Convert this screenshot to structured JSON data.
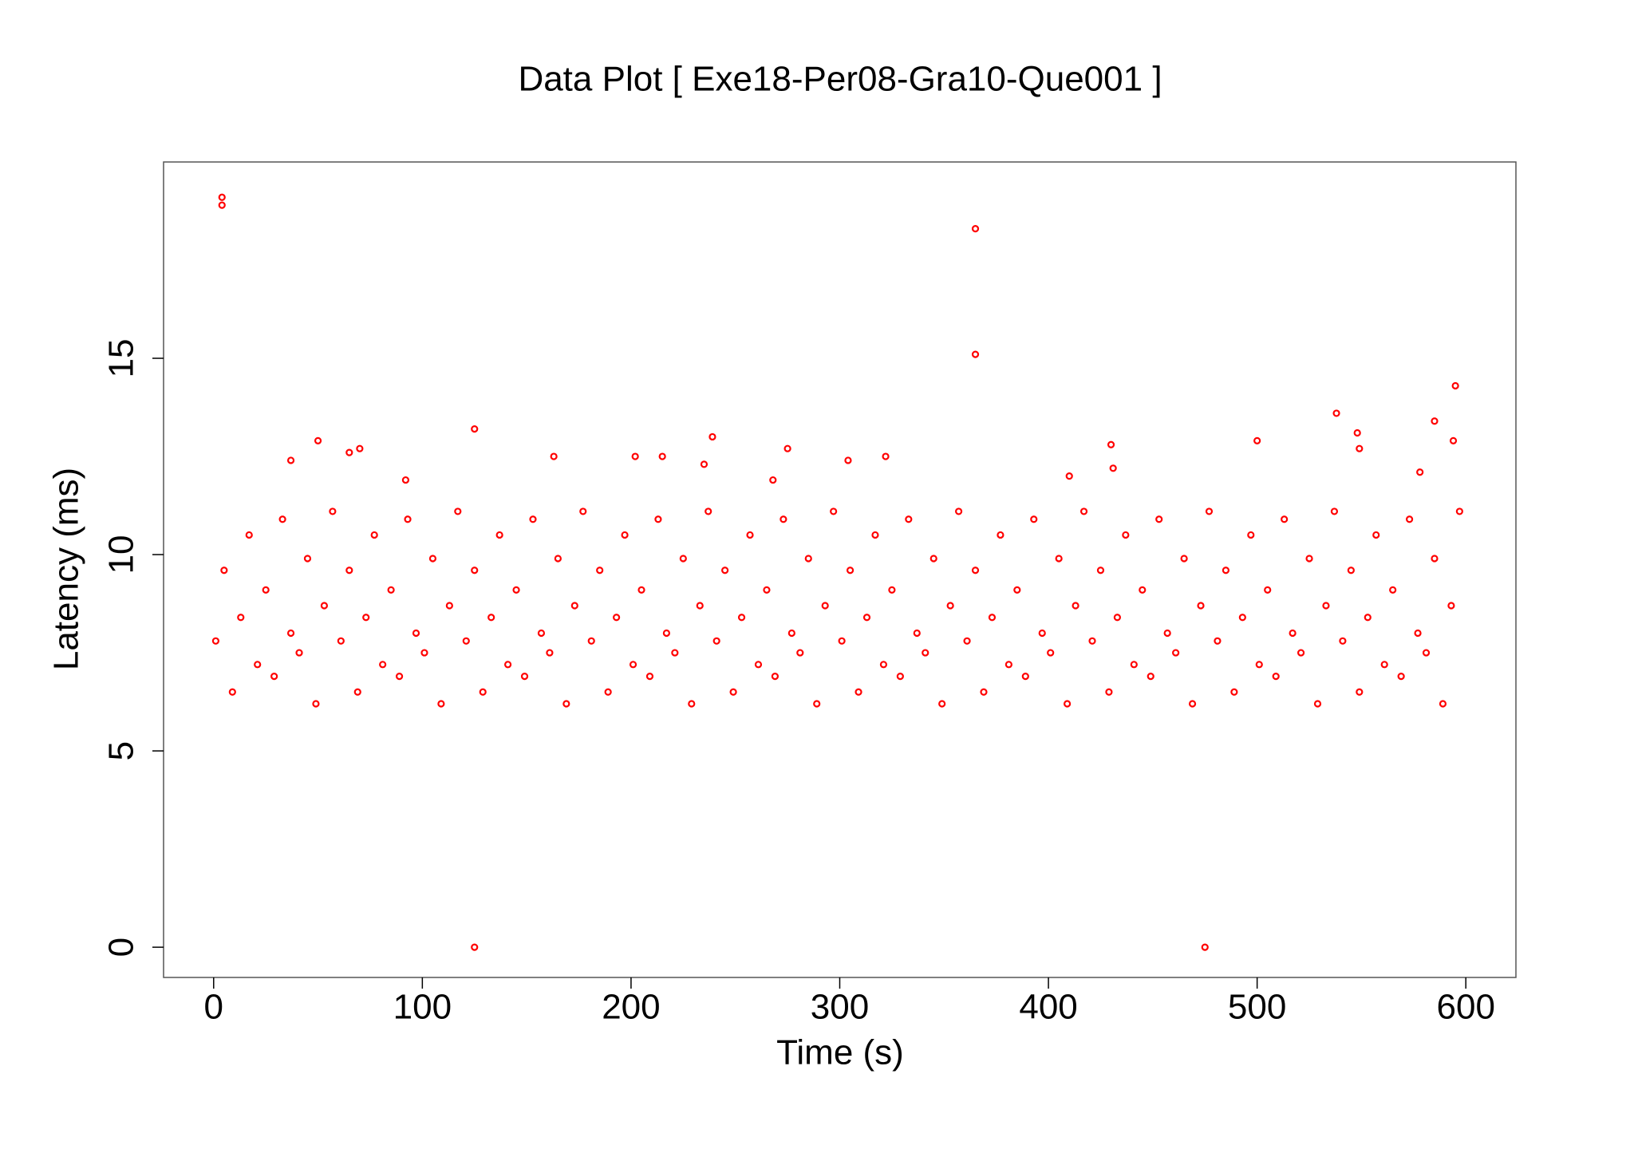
{
  "chart_data": {
    "type": "scatter",
    "title": "Data Plot [ Exe18-Per08-Gra10-Que001 ]",
    "x_label": "Time (s)",
    "y_label": "Latency (ms)",
    "xlim": [
      -24,
      624
    ],
    "ylim": [
      -0.77,
      20
    ],
    "xticks": [
      0,
      100,
      200,
      300,
      400,
      500,
      600
    ],
    "yticks": [
      0,
      5,
      10,
      15
    ],
    "series": [
      {
        "color": "#ff0000",
        "x": [
          1,
          5,
          9,
          13,
          17,
          21,
          25,
          29,
          33,
          37,
          41,
          45,
          49,
          53,
          57,
          61,
          65,
          69,
          73,
          77,
          81,
          85,
          89,
          93,
          97,
          101,
          105,
          109,
          113,
          117,
          121,
          125,
          129,
          133,
          137,
          141,
          145,
          149,
          153,
          157,
          161,
          165,
          169,
          173,
          177,
          181,
          185,
          189,
          193,
          197,
          201,
          205,
          209,
          213,
          217,
          221,
          225,
          229,
          233,
          237,
          241,
          245,
          249,
          253,
          257,
          261,
          265,
          269,
          273,
          277,
          281,
          285,
          289,
          293,
          297,
          301,
          305,
          309,
          313,
          317,
          321,
          325,
          329,
          333,
          337,
          341,
          345,
          349,
          353,
          357,
          361,
          365,
          369,
          373,
          377,
          381,
          385,
          389,
          393,
          397,
          401,
          405,
          409,
          413,
          417,
          421,
          425,
          429,
          433,
          437,
          441,
          445,
          449,
          453,
          457,
          461,
          465,
          469,
          473,
          477,
          481,
          485,
          489,
          493,
          497,
          501,
          505,
          509,
          513,
          517,
          521,
          525,
          529,
          533,
          537,
          541,
          545,
          549,
          553,
          557,
          561,
          565,
          569,
          573,
          577,
          581,
          585,
          589,
          593,
          597,
          4,
          4,
          365,
          365,
          125,
          475,
          595,
          538,
          585,
          125,
          239,
          50,
          500,
          594,
          430,
          70,
          275,
          65,
          215,
          163,
          202,
          322,
          37,
          304,
          235,
          431,
          578,
          92,
          268,
          410,
          548,
          549
        ],
        "values": [
          7.8,
          9.6,
          6.5,
          8.4,
          10.5,
          7.2,
          9.1,
          6.9,
          10.9,
          8.0,
          7.5,
          9.9,
          6.2,
          8.7,
          11.1,
          7.8,
          9.6,
          6.5,
          8.4,
          10.5,
          7.2,
          9.1,
          6.9,
          10.9,
          8.0,
          7.5,
          9.9,
          6.2,
          8.7,
          11.1,
          7.8,
          9.6,
          6.5,
          8.4,
          10.5,
          7.2,
          9.1,
          6.9,
          10.9,
          8.0,
          7.5,
          9.9,
          6.2,
          8.7,
          11.1,
          7.8,
          9.6,
          6.5,
          8.4,
          10.5,
          7.2,
          9.1,
          6.9,
          10.9,
          8.0,
          7.5,
          9.9,
          6.2,
          8.7,
          11.1,
          7.8,
          9.6,
          6.5,
          8.4,
          10.5,
          7.2,
          9.1,
          6.9,
          10.9,
          8.0,
          7.5,
          9.9,
          6.2,
          8.7,
          11.1,
          7.8,
          9.6,
          6.5,
          8.4,
          10.5,
          7.2,
          9.1,
          6.9,
          10.9,
          8.0,
          7.5,
          9.9,
          6.2,
          8.7,
          11.1,
          7.8,
          9.6,
          6.5,
          8.4,
          10.5,
          7.2,
          9.1,
          6.9,
          10.9,
          8.0,
          7.5,
          9.9,
          6.2,
          8.7,
          11.1,
          7.8,
          9.6,
          6.5,
          8.4,
          10.5,
          7.2,
          9.1,
          6.9,
          10.9,
          8.0,
          7.5,
          9.9,
          6.2,
          8.7,
          11.1,
          7.8,
          9.6,
          6.5,
          8.4,
          10.5,
          7.2,
          9.1,
          6.9,
          10.9,
          8.0,
          7.5,
          9.9,
          6.2,
          8.7,
          11.1,
          7.8,
          9.6,
          6.5,
          8.4,
          10.5,
          7.2,
          9.1,
          6.9,
          10.9,
          8.0,
          7.5,
          9.9,
          6.2,
          8.7,
          11.1,
          19.1,
          18.9,
          18.3,
          15.1,
          0,
          0,
          14.3,
          13.6,
          13.4,
          13.2,
          13.0,
          12.9,
          12.9,
          12.9,
          12.8,
          12.7,
          12.7,
          12.6,
          12.5,
          12.5,
          12.5,
          12.5,
          12.4,
          12.4,
          12.3,
          12.2,
          12.1,
          11.9,
          11.9,
          12.0,
          13.1,
          12.7
        ]
      }
    ]
  }
}
